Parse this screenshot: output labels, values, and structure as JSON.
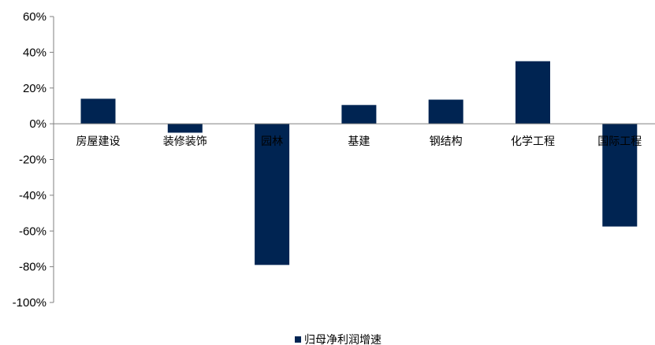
{
  "chart_data": {
    "type": "bar",
    "categories": [
      "房屋建设",
      "装修装饰",
      "园林",
      "基建",
      "钢结构",
      "化学工程",
      "国际工程"
    ],
    "series": [
      {
        "name": "归母净利润增速",
        "values": [
          14,
          -5,
          -79,
          10.5,
          13.5,
          35,
          -57.5
        ]
      }
    ],
    "ylim": [
      -100,
      60
    ],
    "yticks": [
      "60%",
      "40%",
      "20%",
      "0%",
      "-20%",
      "-40%",
      "-60%",
      "-80%",
      "-100%"
    ],
    "ytick_values": [
      60,
      40,
      20,
      0,
      -20,
      -40,
      -60,
      -80,
      -100
    ],
    "grid": false,
    "legend_position": "bottom-center",
    "bar_color": "#002452"
  }
}
